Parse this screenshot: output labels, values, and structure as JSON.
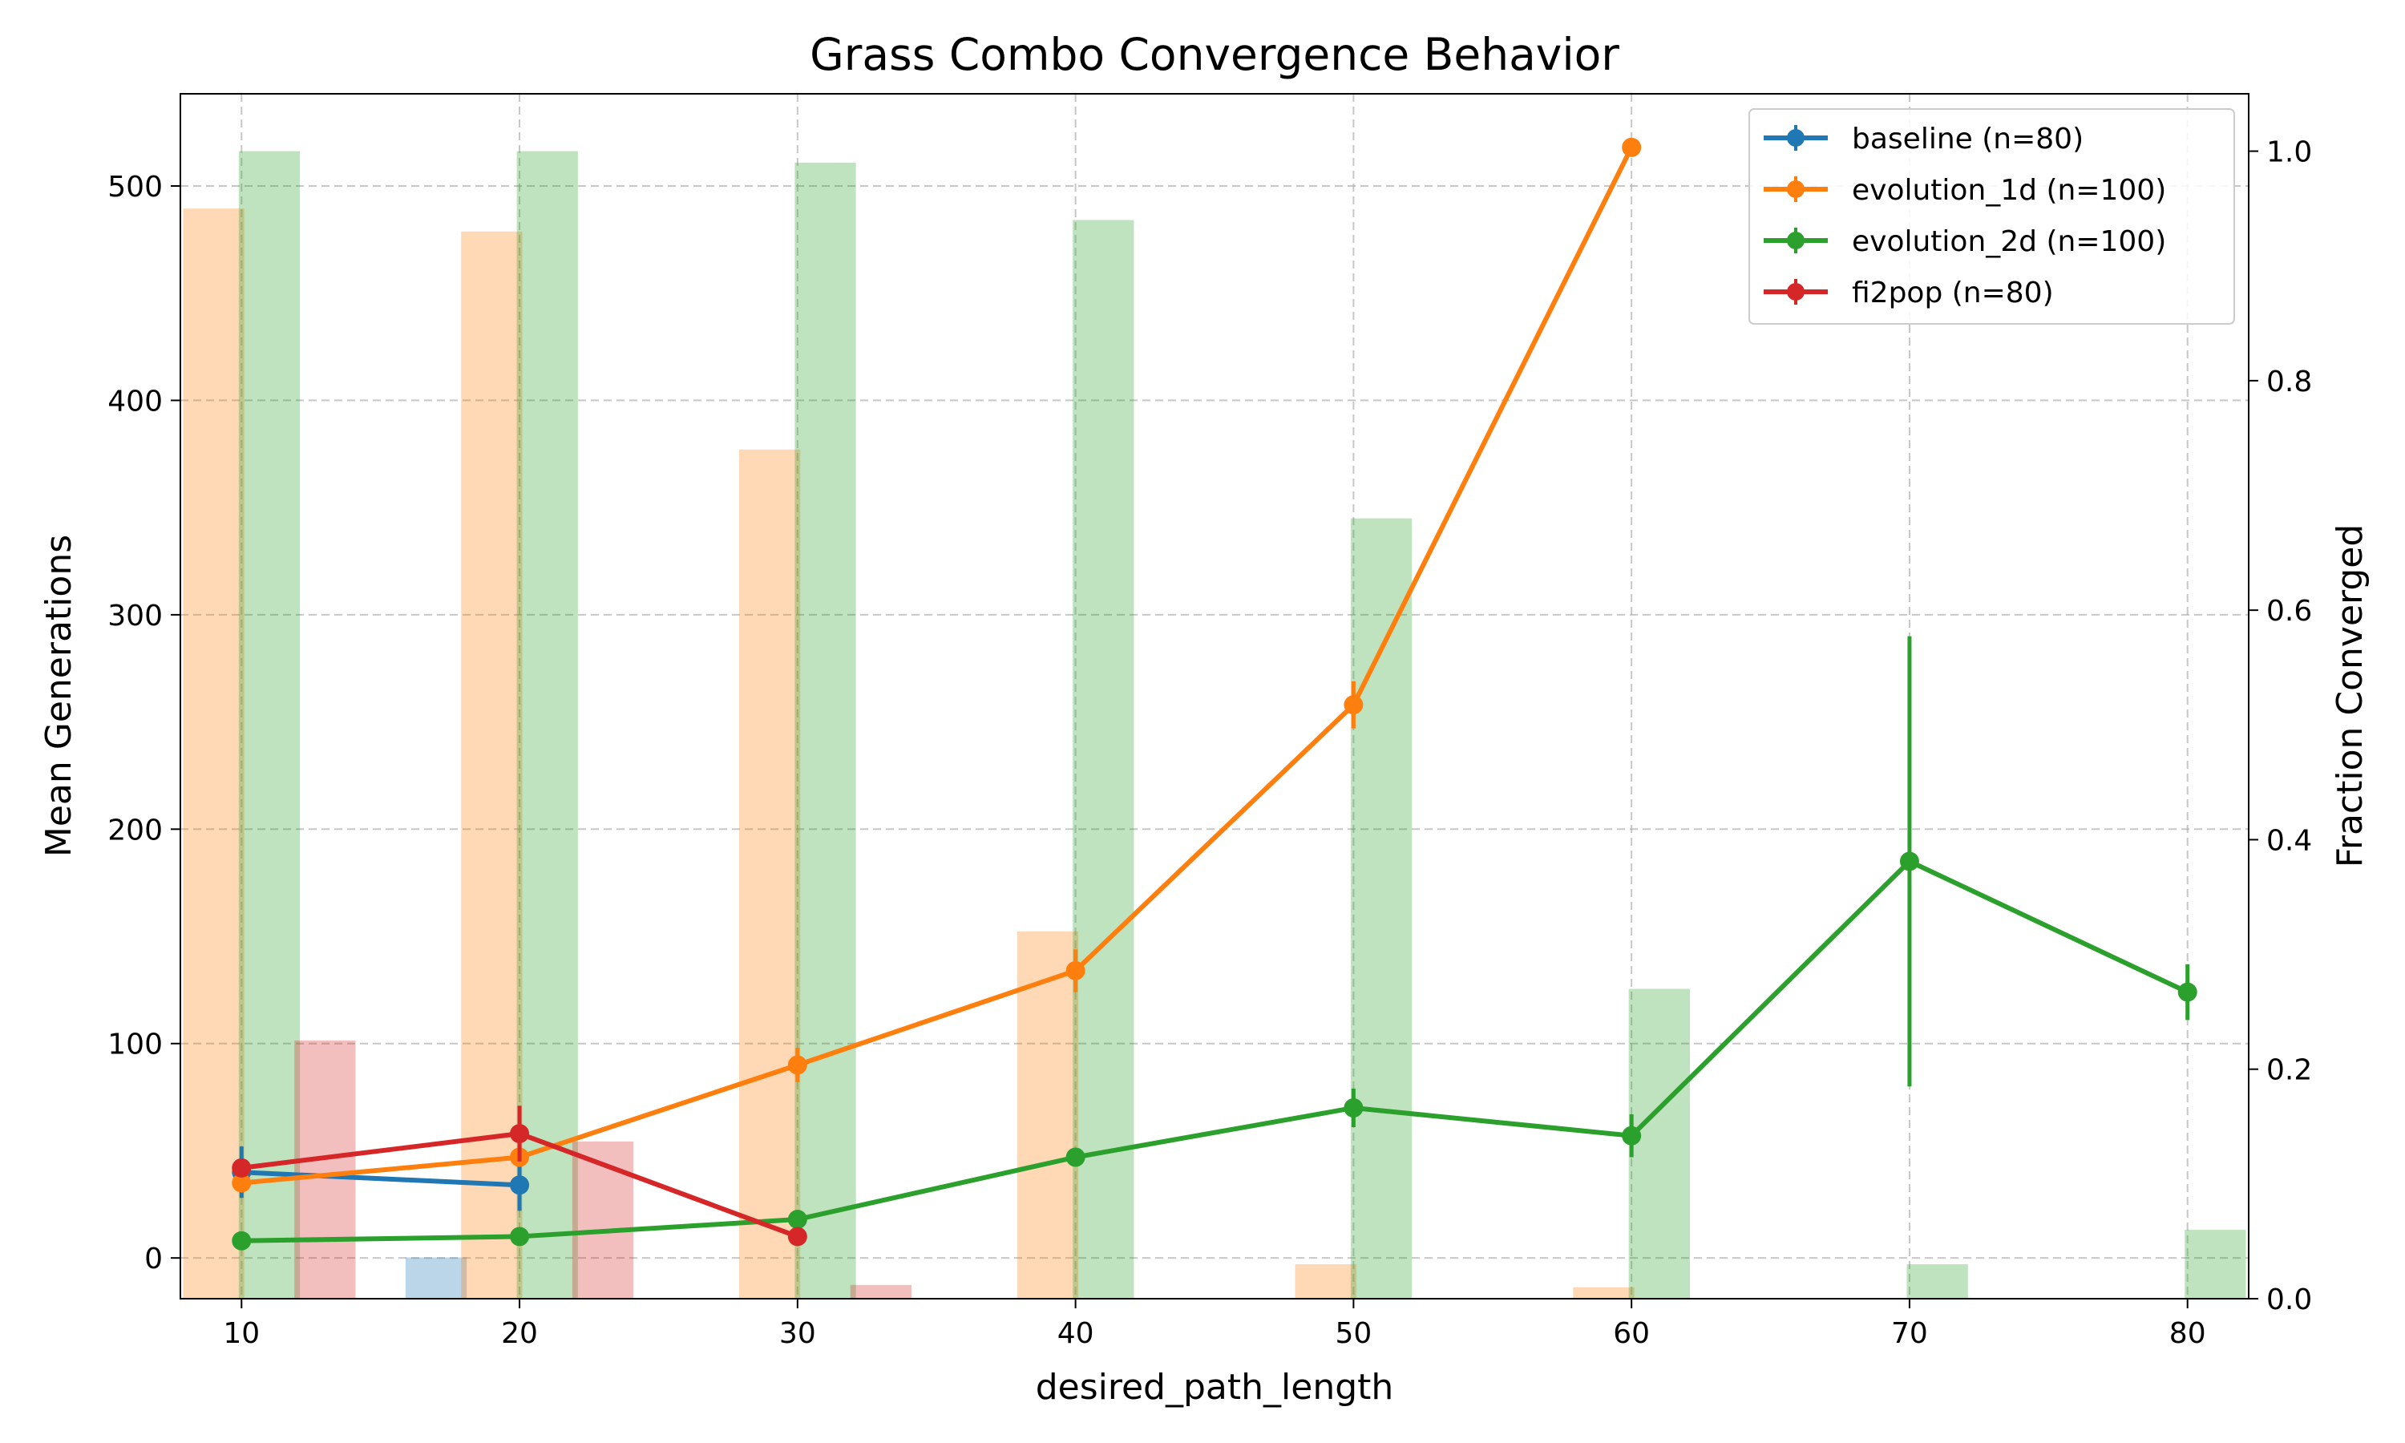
{
  "chart_data": {
    "type": "line",
    "title": "Grass Combo Convergence Behavior",
    "xlabel": "desired_path_length",
    "ylabel": "Mean Generations",
    "ylabel_right": "Fraction Converged",
    "x_ticks": [
      10,
      20,
      30,
      40,
      50,
      60,
      70,
      80
    ],
    "y_ticks": [
      0,
      100,
      200,
      300,
      400,
      500
    ],
    "y2_ticks": [
      "0.0",
      "0.2",
      "0.4",
      "0.6",
      "0.8",
      "1.0"
    ],
    "xlim": [
      7.8,
      82.2
    ],
    "ylim": [
      -19,
      543
    ],
    "y2lim": [
      0,
      1.05
    ],
    "grid": true,
    "legend_position": "top-right",
    "series": [
      {
        "name": "baseline (n=80)",
        "color": "#1f77b4",
        "x": [
          10,
          20
        ],
        "mean_generations": [
          40,
          34
        ],
        "error": [
          12,
          12
        ],
        "fraction_converged": [
          0.0,
          0.036
        ]
      },
      {
        "name": "evolution_1d (n=100)",
        "color": "#ff7f0e",
        "x": [
          10,
          20,
          30,
          40,
          50,
          60
        ],
        "mean_generations": [
          35,
          47,
          90,
          134,
          258,
          518
        ],
        "error": [
          4,
          4,
          8,
          10,
          11,
          4
        ],
        "fraction_converged": [
          0.95,
          0.93,
          0.74,
          0.32,
          0.03,
          0.01
        ]
      },
      {
        "name": "evolution_2d (n=100)",
        "color": "#2ca02c",
        "x": [
          10,
          20,
          30,
          40,
          50,
          60,
          70,
          80
        ],
        "mean_generations": [
          8,
          10,
          18,
          47,
          70,
          57,
          185,
          124
        ],
        "error": [
          2,
          2,
          3,
          4,
          9,
          10,
          105,
          13
        ],
        "fraction_converged": [
          1.0,
          1.0,
          0.99,
          0.94,
          0.68,
          0.27,
          0.03,
          0.06
        ]
      },
      {
        "name": "fi2pop (n=80)",
        "color": "#d62728",
        "x": [
          10,
          20,
          30
        ],
        "mean_generations": [
          42,
          58,
          10
        ],
        "error": [
          4,
          13,
          2
        ],
        "fraction_converged": [
          0.225,
          0.137,
          0.012
        ]
      }
    ]
  }
}
